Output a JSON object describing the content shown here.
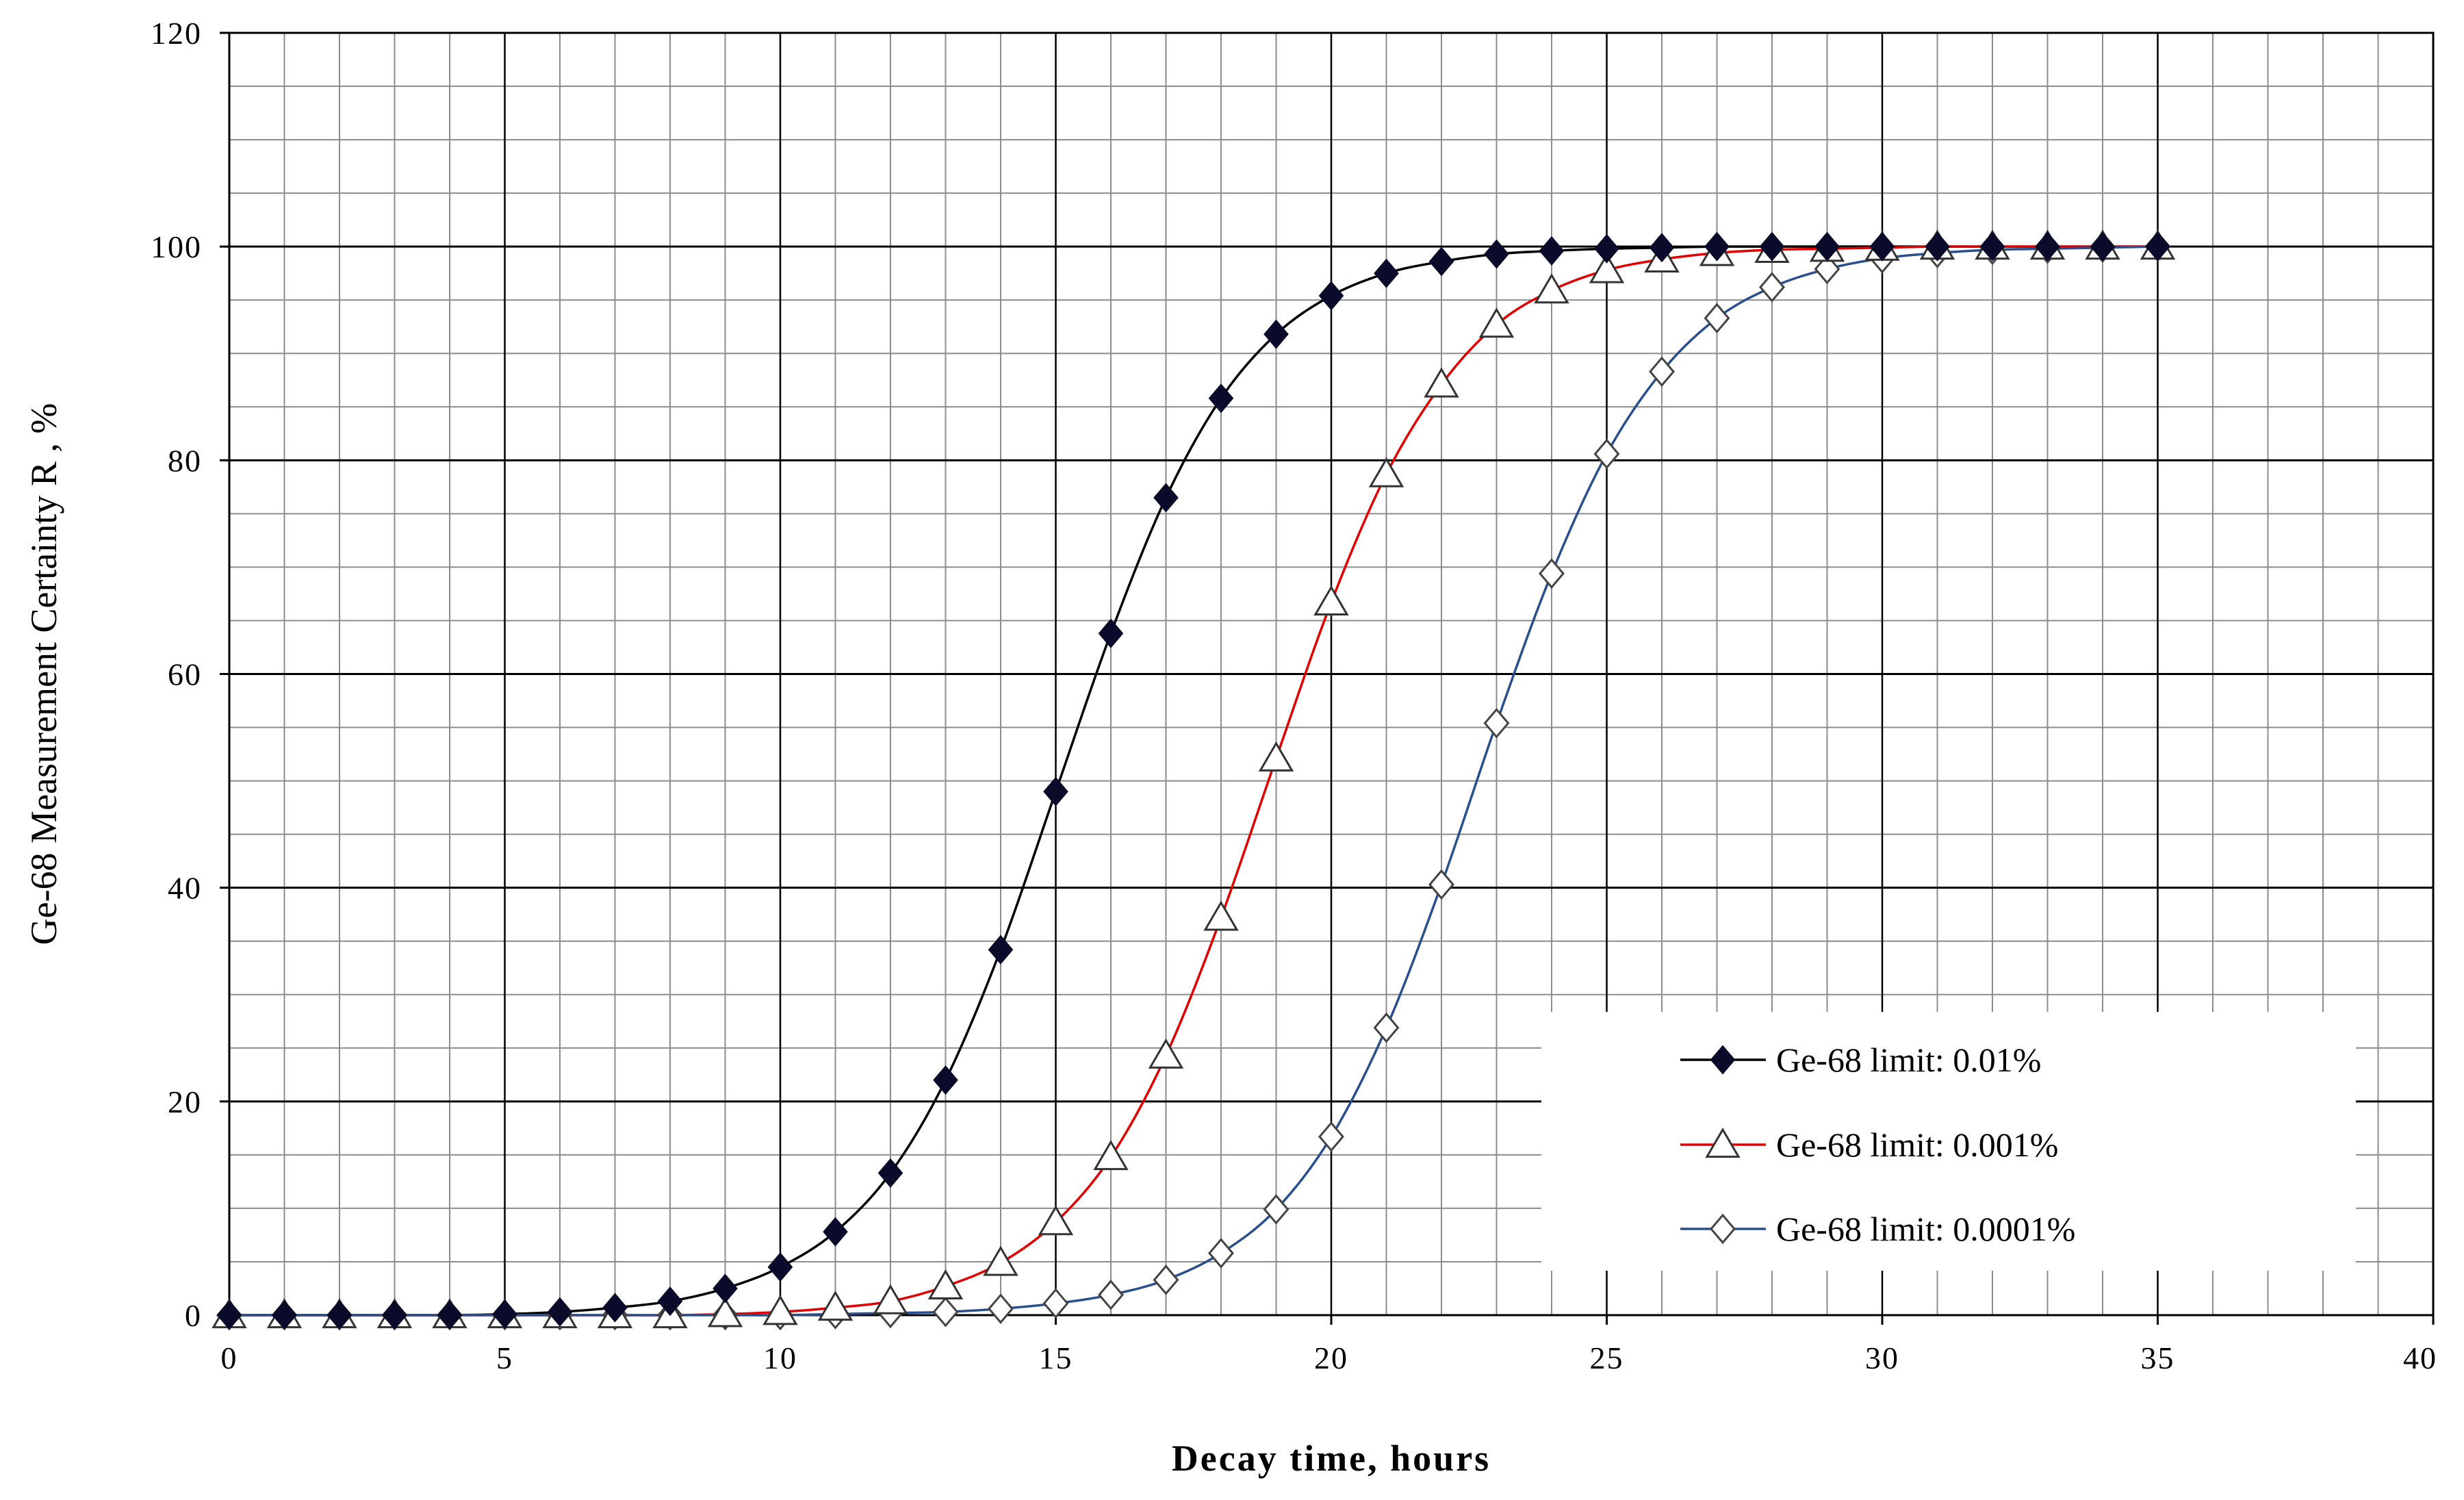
{
  "chart_data": {
    "type": "line",
    "title": "",
    "xlabel": "Decay time, hours",
    "ylabel": "Ge-68 Measurement Certainty R , %",
    "xlim": [
      0,
      40
    ],
    "ylim": [
      0,
      120
    ],
    "xticks": [
      "0",
      "5",
      "10",
      "15",
      "20",
      "25",
      "30",
      "35",
      "40"
    ],
    "yticks": [
      "0",
      "20",
      "40",
      "60",
      "80",
      "100",
      "120"
    ],
    "grid": true,
    "legend_position": "bottom-right",
    "x": [
      0,
      1,
      2,
      3,
      4,
      5,
      6,
      7,
      8,
      9,
      10,
      11,
      12,
      13,
      14,
      15,
      16,
      17,
      18,
      19,
      20,
      21,
      22,
      23,
      24,
      25,
      26,
      27,
      28,
      29,
      30,
      31,
      32,
      33,
      34,
      35
    ],
    "series": [
      {
        "name": "Ge-68 limit:  0.01%",
        "color": "#000000",
        "marker": "filled-diamond",
        "values": [
          0,
          0,
          0,
          0,
          0,
          0.1,
          0.3,
          0.7,
          1.3,
          2.5,
          4.5,
          7.8,
          13.3,
          22,
          34.2,
          49,
          63.8,
          76.5,
          85.8,
          91.8,
          95.4,
          97.5,
          98.6,
          99.3,
          99.6,
          99.8,
          99.9,
          100,
          100,
          100,
          100,
          100,
          100,
          100,
          100,
          100
        ]
      },
      {
        "name": "Ge-68 limit:  0.001%",
        "color": "#e00000",
        "marker": "open-triangle",
        "values": [
          0,
          0,
          0,
          0,
          0,
          0,
          0,
          0,
          0,
          0.1,
          0.3,
          0.7,
          1.3,
          2.7,
          4.9,
          8.7,
          14.8,
          24.3,
          37.2,
          52.1,
          66.7,
          78.7,
          87.1,
          92.7,
          95.9,
          97.8,
          98.8,
          99.4,
          99.7,
          99.8,
          99.9,
          100,
          100,
          100,
          100,
          100
        ]
      },
      {
        "name": "Ge-68 limit:  0.0001%",
        "color": "#2a4f8f",
        "marker": "open-diamond",
        "values": [
          0,
          0,
          0,
          0,
          0,
          0,
          0,
          0,
          0,
          0,
          0,
          0.1,
          0.2,
          0.3,
          0.6,
          1.1,
          1.9,
          3.3,
          5.8,
          9.9,
          16.7,
          26.9,
          40.3,
          55.4,
          69.4,
          80.6,
          88.3,
          93.3,
          96.2,
          97.9,
          98.9,
          99.4,
          99.7,
          99.8,
          99.9,
          100
        ]
      }
    ]
  }
}
